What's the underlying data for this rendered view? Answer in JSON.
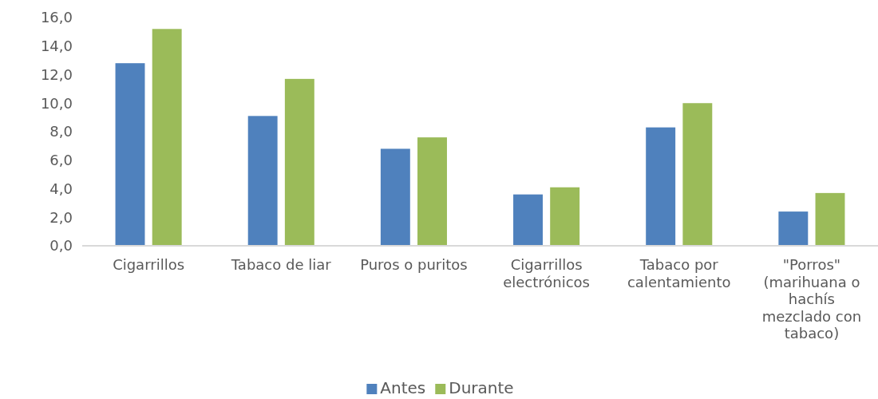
{
  "chart_data": {
    "type": "bar",
    "categories": [
      "Cigarrillos",
      "Tabaco de liar",
      "Puros o puritos",
      "Cigarrillos electrónicos",
      "Tabaco por calentamiento",
      "\"Porros\" (marihuana o hachís mezclado con tabaco)"
    ],
    "series": [
      {
        "name": "Antes",
        "color": "#4f81bd",
        "values": [
          12.8,
          9.1,
          6.8,
          3.6,
          8.3,
          2.4
        ]
      },
      {
        "name": "Durante",
        "color": "#9bbb59",
        "values": [
          15.2,
          11.7,
          7.6,
          4.1,
          10.0,
          3.7
        ]
      }
    ],
    "ylim": [
      0,
      16
    ],
    "yticks": [
      {
        "value": 0,
        "label": "0,0"
      },
      {
        "value": 2,
        "label": "2,0"
      },
      {
        "value": 4,
        "label": "4,0"
      },
      {
        "value": 6,
        "label": "6,0"
      },
      {
        "value": 8,
        "label": "8,0"
      },
      {
        "value": 10,
        "label": "10,0"
      },
      {
        "value": 12,
        "label": "12,0"
      },
      {
        "value": 14,
        "label": "14,0"
      },
      {
        "value": 16,
        "label": "16,0"
      }
    ],
    "grid": false,
    "legend": "bottom"
  }
}
